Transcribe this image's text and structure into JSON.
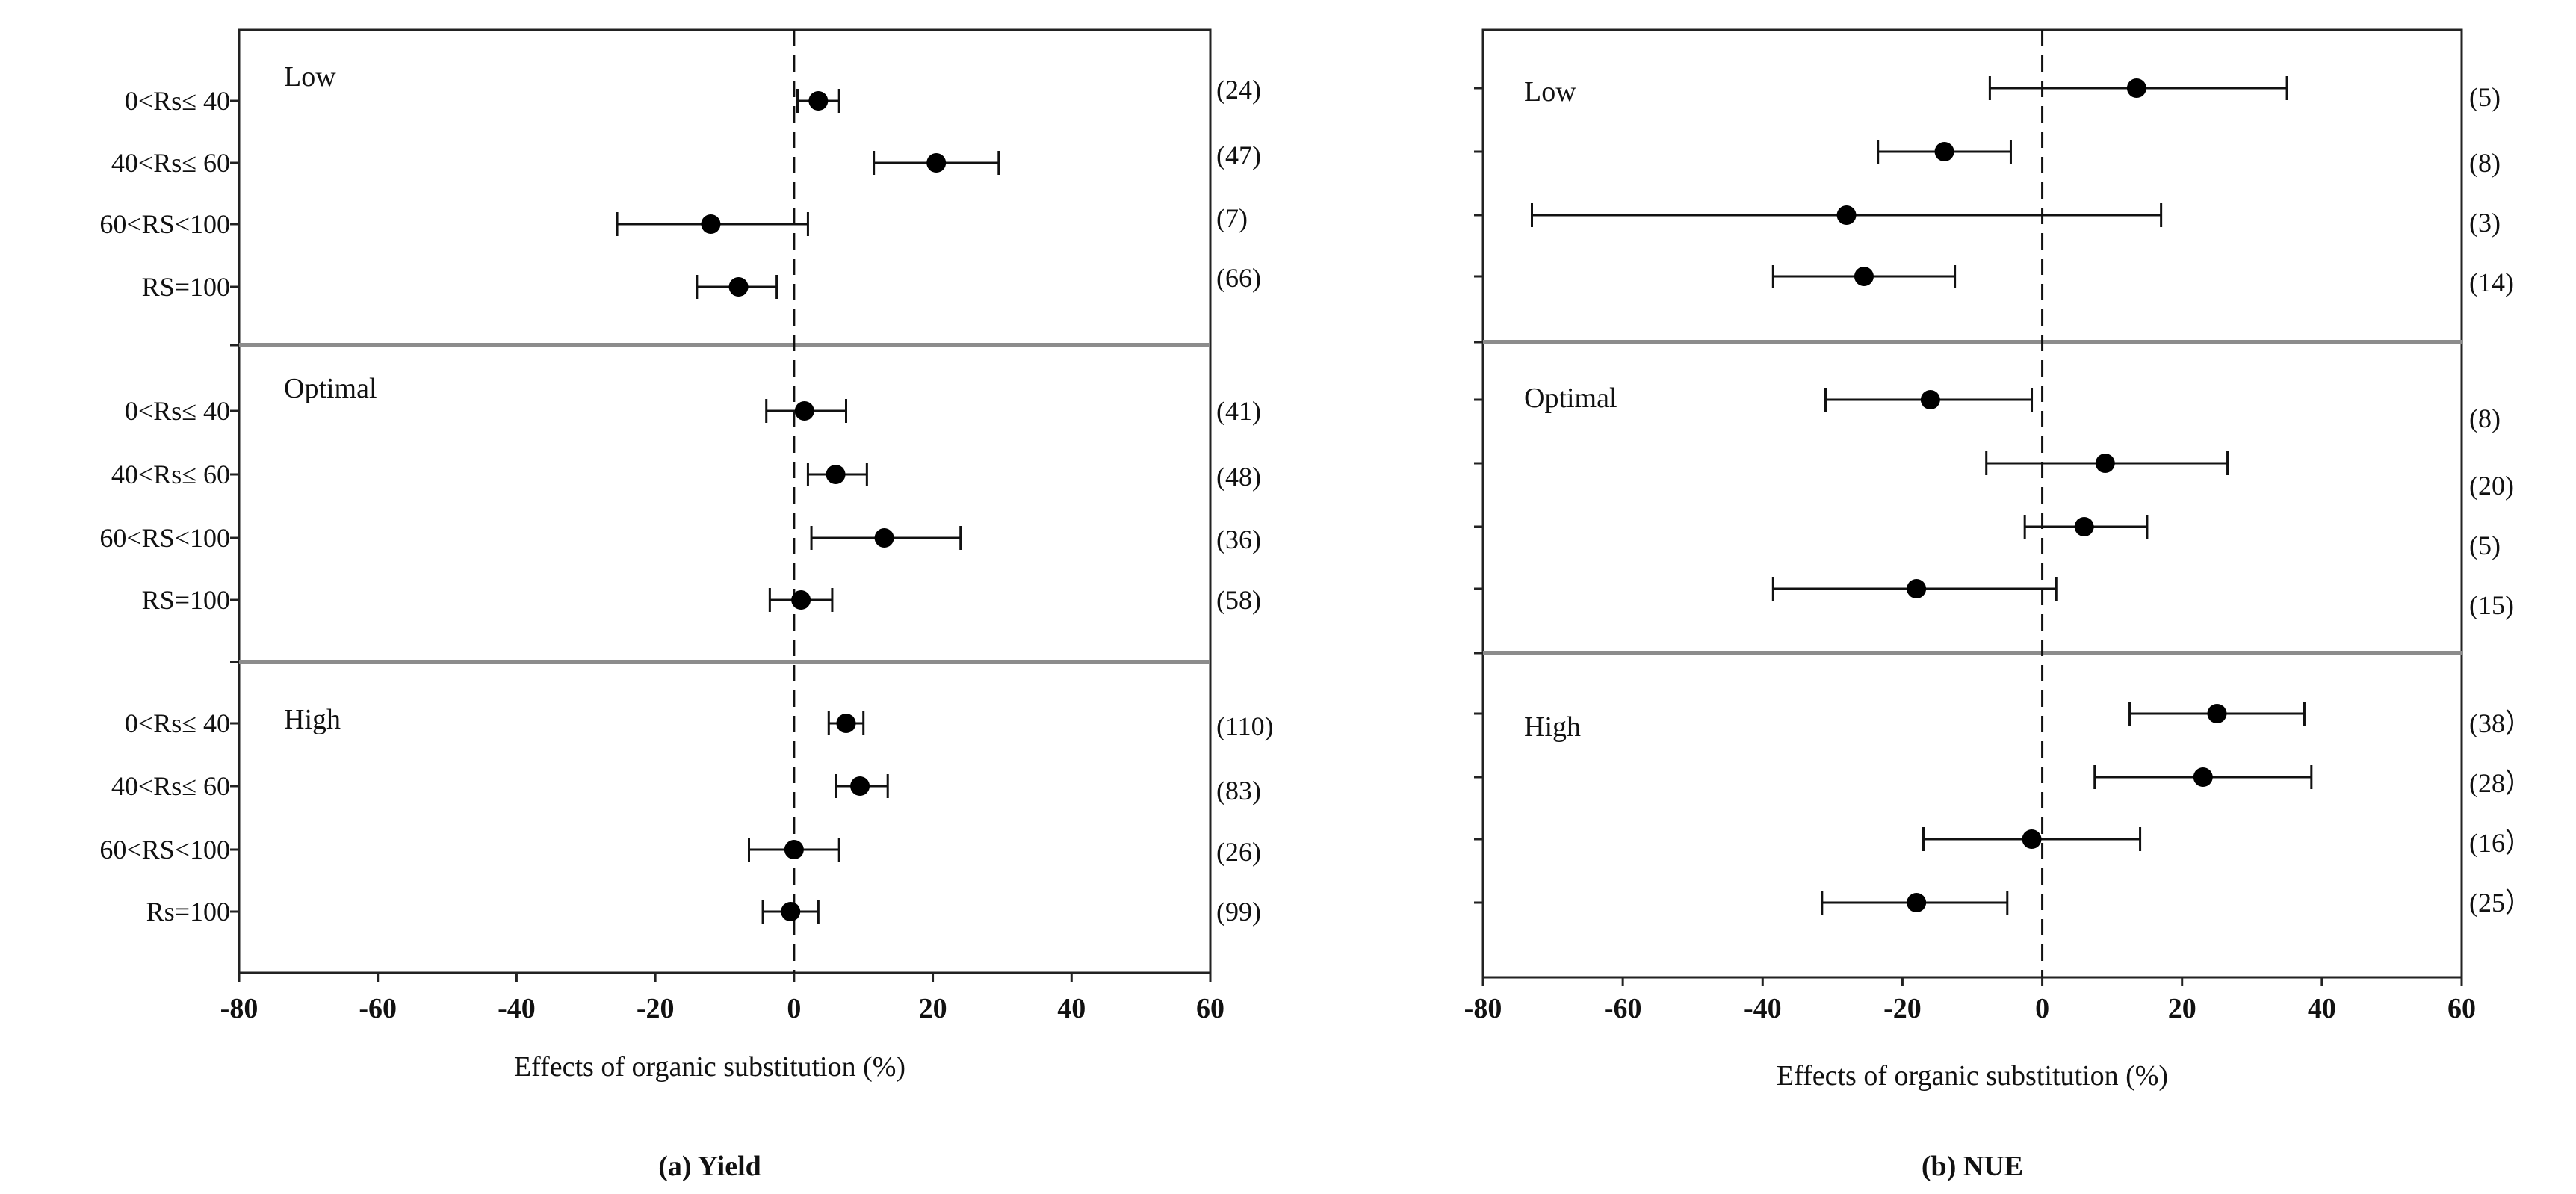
{
  "chart_data": [
    {
      "type": "forest",
      "panel_caption": "(a) Yield",
      "xlabel": "Effects of organic substitution (%)",
      "xlim": [
        -80,
        60
      ],
      "xticks": [
        -80,
        -60,
        -40,
        -20,
        0,
        20,
        40,
        60
      ],
      "xtick_labels": [
        "-80",
        "-60",
        "-40",
        "-20",
        "0",
        "20",
        "40",
        "60"
      ],
      "reference_line": 0,
      "groups": [
        {
          "label": "Low",
          "rows": [
            {
              "category": "0<Rs≤ 40",
              "mean": 3.5,
              "lower": 0.5,
              "upper": 6.5,
              "n_label": "(24)"
            },
            {
              "category": "40<Rs≤ 60",
              "mean": 20.5,
              "lower": 11.5,
              "upper": 29.5,
              "n_label": "(47)"
            },
            {
              "category": "60<RS<100",
              "mean": -12,
              "lower": -25.5,
              "upper": 2,
              "n_label": "(7)"
            },
            {
              "category": "RS=100",
              "mean": -8,
              "lower": -14,
              "upper": -2.5,
              "n_label": "(66)"
            }
          ]
        },
        {
          "label": "Optimal",
          "rows": [
            {
              "category": "0<Rs≤ 40",
              "mean": 1.5,
              "lower": -4,
              "upper": 7.5,
              "n_label": "(41)"
            },
            {
              "category": "40<Rs≤ 60",
              "mean": 6,
              "lower": 2,
              "upper": 10.5,
              "n_label": "(48)"
            },
            {
              "category": "60<RS<100",
              "mean": 13,
              "lower": 2.5,
              "upper": 24,
              "n_label": "(36)"
            },
            {
              "category": "RS=100",
              "mean": 1,
              "lower": -3.5,
              "upper": 5.5,
              "n_label": "(58)"
            }
          ]
        },
        {
          "label": "High",
          "rows": [
            {
              "category": "0<Rs≤ 40",
              "mean": 7.5,
              "lower": 5,
              "upper": 10,
              "n_label": "(110)"
            },
            {
              "category": "40<Rs≤ 60",
              "mean": 9.5,
              "lower": 6,
              "upper": 13.5,
              "n_label": "(83)"
            },
            {
              "category": "60<RS<100",
              "mean": 0,
              "lower": -6.5,
              "upper": 6.5,
              "n_label": "(26)"
            },
            {
              "category": "Rs=100",
              "mean": -0.5,
              "lower": -4.5,
              "upper": 3.5,
              "n_label": "(99)"
            }
          ]
        }
      ]
    },
    {
      "type": "forest",
      "panel_caption": "(b) NUE",
      "xlabel": "Effects of organic substitution (%)",
      "xlim": [
        -80,
        60
      ],
      "xticks": [
        -80,
        -60,
        -40,
        -20,
        0,
        20,
        40,
        60
      ],
      "xtick_labels": [
        "-80",
        "-60",
        "-40",
        "-20",
        "0",
        "20",
        "40",
        "60"
      ],
      "reference_line": 0,
      "groups": [
        {
          "label": "Low",
          "rows": [
            {
              "mean": 13.5,
              "lower": -7.5,
              "upper": 35,
              "n_label": "(5)"
            },
            {
              "mean": -14,
              "lower": -23.5,
              "upper": -4.5,
              "n_label": "(8)"
            },
            {
              "mean": -28,
              "lower": -73,
              "upper": 17,
              "n_label": "(3)"
            },
            {
              "mean": -25.5,
              "lower": -38.5,
              "upper": -12.5,
              "n_label": "(14)"
            }
          ]
        },
        {
          "label": "Optimal",
          "rows": [
            {
              "mean": -16,
              "lower": -31,
              "upper": -1.5,
              "n_label": "(8)"
            },
            {
              "mean": 9,
              "lower": -8,
              "upper": 26.5,
              "n_label": "(20)"
            },
            {
              "mean": 6,
              "lower": -2.5,
              "upper": 15,
              "n_label": "(5)"
            },
            {
              "mean": -18,
              "lower": -38.5,
              "upper": 2,
              "n_label": "(15)"
            }
          ]
        },
        {
          "label": "High",
          "rows": [
            {
              "mean": 25,
              "lower": 12.5,
              "upper": 37.5,
              "n_label": "(38）"
            },
            {
              "mean": 23,
              "lower": 7.5,
              "upper": 38.5,
              "n_label": "(28）"
            },
            {
              "mean": -1.5,
              "lower": -17,
              "upper": 14,
              "n_label": "(16）"
            },
            {
              "mean": -18,
              "lower": -31.5,
              "upper": -5,
              "n_label": "(25）"
            }
          ]
        }
      ]
    }
  ]
}
